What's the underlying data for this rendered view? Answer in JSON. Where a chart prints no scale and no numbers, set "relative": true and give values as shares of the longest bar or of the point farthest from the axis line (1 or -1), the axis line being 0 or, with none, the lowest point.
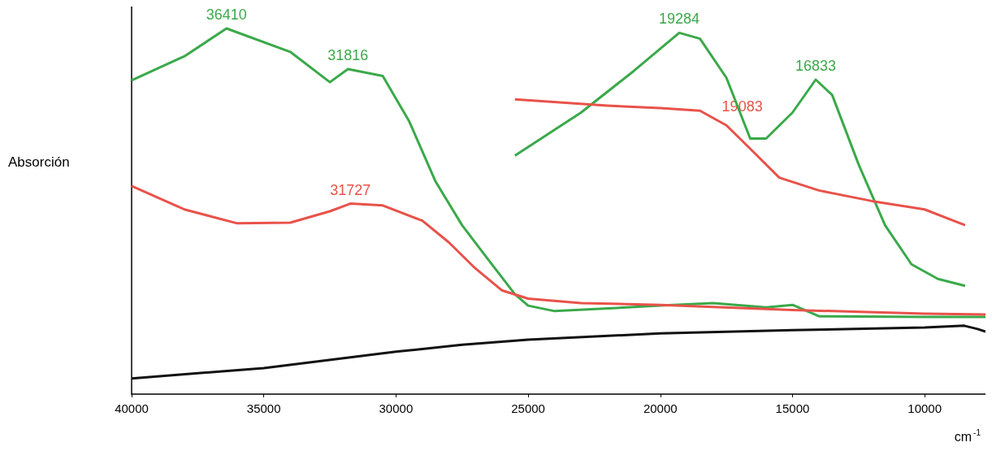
{
  "chart_data": {
    "type": "line",
    "relative": true,
    "xlabel": "cm$^{-1}$",
    "ylabel": "Absorción",
    "xlim": [
      40000,
      7700
    ],
    "xticks": [
      40000,
      35000,
      30000,
      25000,
      20000,
      15000,
      10000
    ],
    "series": [
      {
        "color": "#111111",
        "x": [
          40000,
          35000,
          30000,
          27500,
          25000,
          20000,
          15000,
          10000,
          8500,
          8000,
          7700
        ],
        "values": [
          0.043,
          0.071,
          0.116,
          0.135,
          0.149,
          0.166,
          0.175,
          0.182,
          0.187,
          0.178,
          0.171
        ]
      },
      {
        "color": "#3aa94a",
        "x": [
          40000,
          38000,
          36410,
          34000,
          32500,
          31816,
          30500,
          29500,
          28500,
          27500,
          26500,
          25500,
          25000,
          24000,
          20000,
          18000,
          16000,
          15000,
          14000,
          10000,
          7700
        ],
        "values": [
          0.858,
          0.924,
          1,
          0.936,
          0.853,
          0.889,
          0.87,
          0.746,
          0.581,
          0.462,
          0.367,
          0.273,
          0.242,
          0.227,
          0.242,
          0.249,
          0.237,
          0.244,
          0.213,
          0.211,
          0.211
        ]
      },
      {
        "color": "#e8524a",
        "x": [
          40000,
          38000,
          36000,
          34000,
          32500,
          31727,
          30500,
          29000,
          28000,
          27000,
          26000,
          25000,
          23000,
          20000,
          15000,
          10000,
          7700
        ],
        "values": [
          0.569,
          0.505,
          0.467,
          0.469,
          0.5,
          0.521,
          0.516,
          0.474,
          0.415,
          0.344,
          0.284,
          0.261,
          0.249,
          0.244,
          0.23,
          0.22,
          0.218
        ]
      },
      {
        "color": "#3aa94a",
        "x": [
          25500,
          23000,
          21000,
          19284,
          18500,
          17500,
          16600,
          16000,
          15000,
          14123,
          13500,
          12500,
          11500,
          10500,
          9500,
          8470
        ],
        "values": [
          0.652,
          0.77,
          0.884,
          0.988,
          0.972,
          0.865,
          0.699,
          0.699,
          0.77,
          0.86,
          0.818,
          0.628,
          0.462,
          0.355,
          0.315,
          0.296
        ]
      },
      {
        "color": "#e8524a",
        "x": [
          25500,
          22000,
          20000,
          18500,
          17500,
          16500,
          15500,
          14000,
          12000,
          10000,
          8470
        ],
        "values": [
          0.806,
          0.789,
          0.782,
          0.775,
          0.735,
          0.664,
          0.592,
          0.557,
          0.528,
          0.505,
          0.462
        ]
      }
    ],
    "annotations": [
      {
        "text": "36410",
        "x": 36410,
        "y": 1
      },
      {
        "text": "31816",
        "x": 31816,
        "y": 0.889
      },
      {
        "text": "31727",
        "x": 31727,
        "y": 0.521
      },
      {
        "text": "19284",
        "x": 19284,
        "y": 0.988
      },
      {
        "text": "19083",
        "x": 16900,
        "y": 0.75
      },
      {
        "text": "16833",
        "x": 14123,
        "y": 0.86
      }
    ]
  }
}
